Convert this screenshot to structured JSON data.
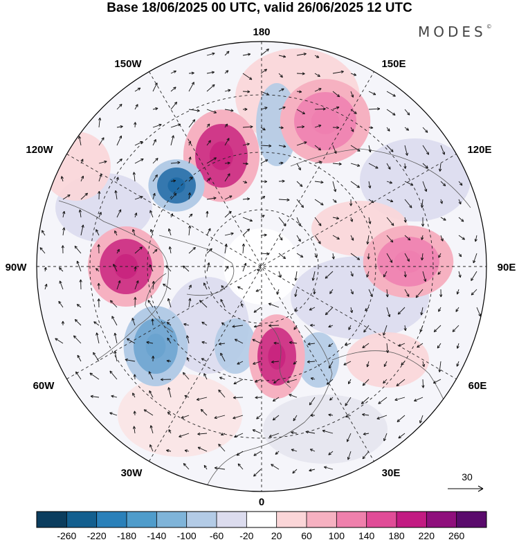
{
  "title": "Base 18/06/2025 00 UTC, valid 26/06/2025 12 UTC",
  "brand": "MODES",
  "brand_mark": "©",
  "map": {
    "projection": "north-polar-stereographic",
    "longitude_labels": {
      "top": "180",
      "top_left": "150W",
      "top_right": "150E",
      "upper_left": "120W",
      "upper_right": "120E",
      "left": "90W",
      "right": "90E",
      "lower_left": "60W",
      "lower_right": "60E",
      "bottom_left": "30W",
      "bottom_right": "30E",
      "bottom": "0"
    },
    "reference_vector_label": "30",
    "anomalies": [
      {
        "name": "positive-anomaly-north-pacific",
        "value": 180,
        "color": "#c9257f"
      },
      {
        "name": "negative-anomaly-alaska",
        "value": -220,
        "color": "#1f6aa5"
      },
      {
        "name": "positive-anomaly-bering",
        "value": 140,
        "color": "#ef7fb0"
      },
      {
        "name": "positive-anomaly-canada",
        "value": 180,
        "color": "#c9257f"
      },
      {
        "name": "negative-anomaly-atlantic",
        "value": -140,
        "color": "#6aa3cf"
      },
      {
        "name": "positive-anomaly-europe",
        "value": 180,
        "color": "#c9257f"
      },
      {
        "name": "positive-anomaly-siberia",
        "value": 140,
        "color": "#ef7fb0"
      }
    ]
  },
  "colorbar": {
    "ticks": [
      "-260",
      "-220",
      "-180",
      "-140",
      "-100",
      "-60",
      "-20",
      "20",
      "60",
      "100",
      "140",
      "180",
      "220",
      "260"
    ],
    "colors": [
      "#0b3d5e",
      "#135f8f",
      "#2a80b9",
      "#4f9ccb",
      "#7fb4d9",
      "#b3cbe6",
      "#dcdcee",
      "#ffffff",
      "#fbd6d8",
      "#f6b1c1",
      "#ef80ac",
      "#e04c97",
      "#c21b82",
      "#8f0f7c",
      "#5a0b6c"
    ]
  }
}
